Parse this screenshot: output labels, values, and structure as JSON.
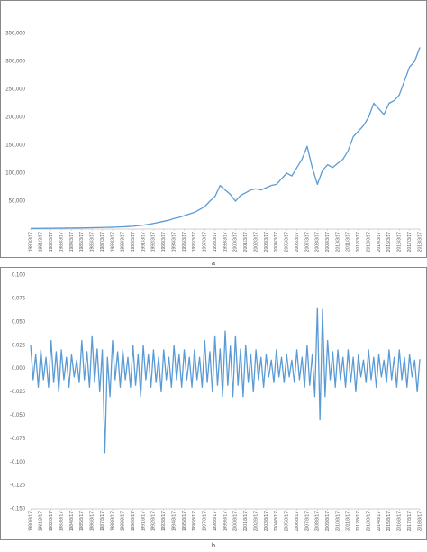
{
  "chart_data": [
    {
      "type": "line",
      "title": "a",
      "color": "#5b9bd5",
      "ylim": [
        0,
        350000
      ],
      "yticks": [
        {
          "value": 50000,
          "label": "50,000"
        },
        {
          "value": 100000,
          "label": "100,000"
        },
        {
          "value": 150000,
          "label": "150,000"
        },
        {
          "value": 200000,
          "label": "200,000"
        },
        {
          "value": 250000,
          "label": "250,000"
        },
        {
          "value": 300000,
          "label": "300,000"
        },
        {
          "value": 350000,
          "label": "350,000"
        }
      ],
      "categories": [
        "1980/3/17",
        null,
        "1981/3/17",
        null,
        "1982/3/17",
        null,
        "1983/3/17",
        null,
        "1984/3/17",
        null,
        "1985/3/17",
        null,
        "1986/3/17",
        null,
        "1987/3/17",
        null,
        "1988/3/17",
        null,
        "1989/3/17",
        null,
        "1990/3/17",
        null,
        "1991/3/17",
        null,
        "1992/3/17",
        null,
        "1993/3/17",
        null,
        "1994/3/17",
        null,
        "1995/3/17",
        null,
        "1996/3/17",
        null,
        "1997/3/17",
        null,
        "1998/3/17",
        null,
        "1999/3/17",
        null,
        "2000/3/17",
        null,
        "2001/3/17",
        null,
        "2002/3/17",
        null,
        "2003/3/17",
        null,
        "2004/3/17",
        null,
        "2005/3/17",
        null,
        "2006/3/17",
        null,
        "2007/3/17",
        null,
        "2008/3/17",
        null,
        "2009/3/17",
        null,
        "2010/3/17",
        null,
        "2011/3/17",
        null,
        "2012/3/17",
        null,
        "2013/3/17",
        null,
        "2014/3/17",
        null,
        "2015/3/17",
        null,
        "2016/3/17",
        null,
        "2017/3/17",
        null,
        "2018/3/17"
      ],
      "values": [
        1000,
        1100,
        1200,
        1300,
        1400,
        1500,
        1600,
        1700,
        1800,
        1900,
        2000,
        2200,
        2400,
        2600,
        2800,
        3000,
        3300,
        3600,
        4000,
        4500,
        5000,
        6000,
        7000,
        8500,
        10000,
        12000,
        14000,
        16000,
        19000,
        21000,
        24000,
        27000,
        30000,
        35000,
        40000,
        50000,
        58000,
        78000,
        70000,
        62000,
        50000,
        60000,
        65000,
        70000,
        72000,
        70000,
        74000,
        78000,
        80000,
        90000,
        100000,
        95000,
        110000,
        125000,
        148000,
        110000,
        80000,
        105000,
        115000,
        110000,
        118000,
        125000,
        140000,
        165000,
        175000,
        185000,
        200000,
        225000,
        215000,
        205000,
        225000,
        230000,
        240000,
        265000,
        290000,
        300000,
        325000
      ]
    },
    {
      "type": "line",
      "title": "b",
      "color": "#5b9bd5",
      "ylim": [
        -0.15,
        0.1
      ],
      "yticks": [
        {
          "value": -0.15,
          "label": "-0.150"
        },
        {
          "value": -0.125,
          "label": "-0.125"
        },
        {
          "value": -0.1,
          "label": "-0.100"
        },
        {
          "value": -0.075,
          "label": "-0.075"
        },
        {
          "value": -0.05,
          "label": "-0.050"
        },
        {
          "value": -0.025,
          "label": "-0.025"
        },
        {
          "value": 0,
          "label": "0.000"
        },
        {
          "value": 0.025,
          "label": "0.025"
        },
        {
          "value": 0.05,
          "label": "0.050"
        },
        {
          "value": 0.075,
          "label": "0.075"
        },
        {
          "value": 0.1,
          "label": "0.100"
        }
      ],
      "categories": [
        "1980/3/17",
        null,
        null,
        null,
        "1981/3/17",
        null,
        null,
        null,
        "1982/3/17",
        null,
        null,
        null,
        "1983/3/17",
        null,
        null,
        null,
        "1984/3/17",
        null,
        null,
        null,
        "1985/3/17",
        null,
        null,
        null,
        "1986/3/17",
        null,
        null,
        null,
        "1987/3/17",
        null,
        null,
        null,
        "1988/3/17",
        null,
        null,
        null,
        "1989/3/17",
        null,
        null,
        null,
        "1990/3/17",
        null,
        null,
        null,
        "1991/3/17",
        null,
        null,
        null,
        "1992/3/17",
        null,
        null,
        null,
        "1993/3/17",
        null,
        null,
        null,
        "1994/3/17",
        null,
        null,
        null,
        "1995/3/17",
        null,
        null,
        null,
        "1996/3/17",
        null,
        null,
        null,
        "1997/3/17",
        null,
        null,
        null,
        "1998/3/17",
        null,
        null,
        null,
        "1999/3/17",
        null,
        null,
        null,
        "2000/3/17",
        null,
        null,
        null,
        "2001/3/17",
        null,
        null,
        null,
        "2002/3/17",
        null,
        null,
        null,
        "2003/3/17",
        null,
        null,
        null,
        "2004/3/17",
        null,
        null,
        null,
        "2005/3/17",
        null,
        null,
        null,
        "2006/3/17",
        null,
        null,
        null,
        "2007/3/17",
        null,
        null,
        null,
        "2008/3/17",
        null,
        null,
        null,
        "2009/3/17",
        null,
        null,
        null,
        "2010/3/17",
        null,
        null,
        null,
        "2011/3/17",
        null,
        null,
        null,
        "2012/3/17",
        null,
        null,
        null,
        "2013/3/17",
        null,
        null,
        null,
        "2014/3/17",
        null,
        null,
        null,
        "2015/3/17",
        null,
        null,
        null,
        "2016/3/17",
        null,
        null,
        null,
        "2017/3/17",
        null,
        null,
        null,
        "2018/3/17"
      ],
      "values": [
        0.025,
        -0.012,
        0.015,
        -0.02,
        0.02,
        -0.012,
        0.012,
        -0.02,
        0.03,
        -0.015,
        0.018,
        -0.025,
        0.02,
        -0.012,
        0.012,
        -0.02,
        0.015,
        -0.009,
        0.009,
        -0.015,
        0.03,
        -0.012,
        0.018,
        -0.02,
        0.035,
        -0.015,
        0.021,
        -0.025,
        0.02,
        -0.09,
        0.012,
        -0.03,
        0.03,
        -0.012,
        0.018,
        -0.02,
        0.02,
        -0.012,
        0.012,
        -0.02,
        0.025,
        -0.018,
        0.015,
        -0.03,
        0.025,
        -0.012,
        0.015,
        -0.02,
        0.02,
        -0.015,
        0.012,
        -0.025,
        0.02,
        -0.012,
        0.012,
        -0.02,
        0.025,
        -0.012,
        0.015,
        -0.02,
        0.02,
        -0.012,
        0.012,
        -0.02,
        0.02,
        -0.012,
        0.012,
        -0.02,
        0.03,
        -0.015,
        0.018,
        -0.025,
        0.035,
        -0.018,
        0.021,
        -0.03,
        0.04,
        -0.018,
        0.024,
        -0.03,
        0.035,
        -0.018,
        0.021,
        -0.03,
        0.025,
        -0.015,
        0.015,
        -0.025,
        0.02,
        -0.012,
        0.012,
        -0.02,
        0.015,
        -0.009,
        0.009,
        -0.015,
        0.02,
        -0.009,
        0.012,
        -0.015,
        0.015,
        -0.009,
        0.009,
        -0.015,
        0.02,
        -0.012,
        0.012,
        -0.02,
        0.025,
        -0.018,
        0.015,
        -0.03,
        0.065,
        -0.055,
        0.063,
        -0.03,
        0.03,
        -0.012,
        0.018,
        -0.02,
        0.02,
        -0.012,
        0.012,
        -0.02,
        0.02,
        -0.015,
        0.012,
        -0.025,
        0.015,
        -0.009,
        0.009,
        -0.015,
        0.02,
        -0.012,
        0.012,
        -0.02,
        0.015,
        -0.009,
        0.009,
        -0.015,
        0.02,
        -0.012,
        0.012,
        -0.02,
        0.02,
        -0.012,
        0.012,
        -0.02,
        0.015,
        -0.009,
        0.009,
        -0.025,
        0.01
      ]
    }
  ]
}
